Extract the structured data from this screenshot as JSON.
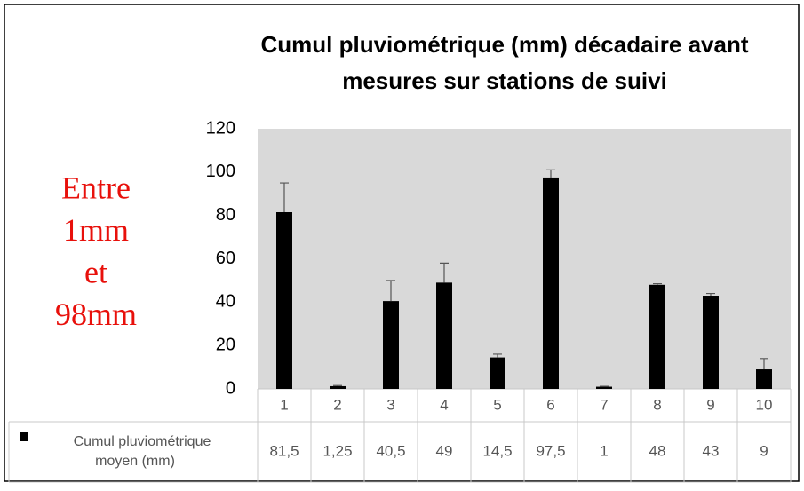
{
  "chart_data": {
    "type": "bar",
    "title": [
      "Cumul pluviométrique (mm) décadaire avant",
      "mesures sur stations de suivi"
    ],
    "annotation": [
      "Entre",
      "1mm",
      "et",
      "98mm"
    ],
    "categories": [
      "1",
      "2",
      "3",
      "4",
      "5",
      "6",
      "7",
      "8",
      "9",
      "10"
    ],
    "series": [
      {
        "name": "Cumul pluviométrique moyen (mm)",
        "color": "#000000",
        "values": [
          81.5,
          1.25,
          40.5,
          49,
          14.5,
          97.5,
          1,
          48,
          43,
          9
        ],
        "value_labels": [
          "81,5",
          "1,25",
          "40,5",
          "49",
          "14,5",
          "97,5",
          "1",
          "48",
          "43",
          "9"
        ],
        "errors": [
          13.5,
          0.3,
          9.5,
          9,
          1.5,
          3.5,
          0.2,
          0.5,
          1,
          5
        ]
      }
    ],
    "ylim": [
      0,
      120
    ],
    "yticks": [
      0,
      20,
      40,
      60,
      80,
      100,
      120
    ],
    "grid": false,
    "plot_background": "#d9d9d9",
    "annotation_color": "#e8100b"
  }
}
